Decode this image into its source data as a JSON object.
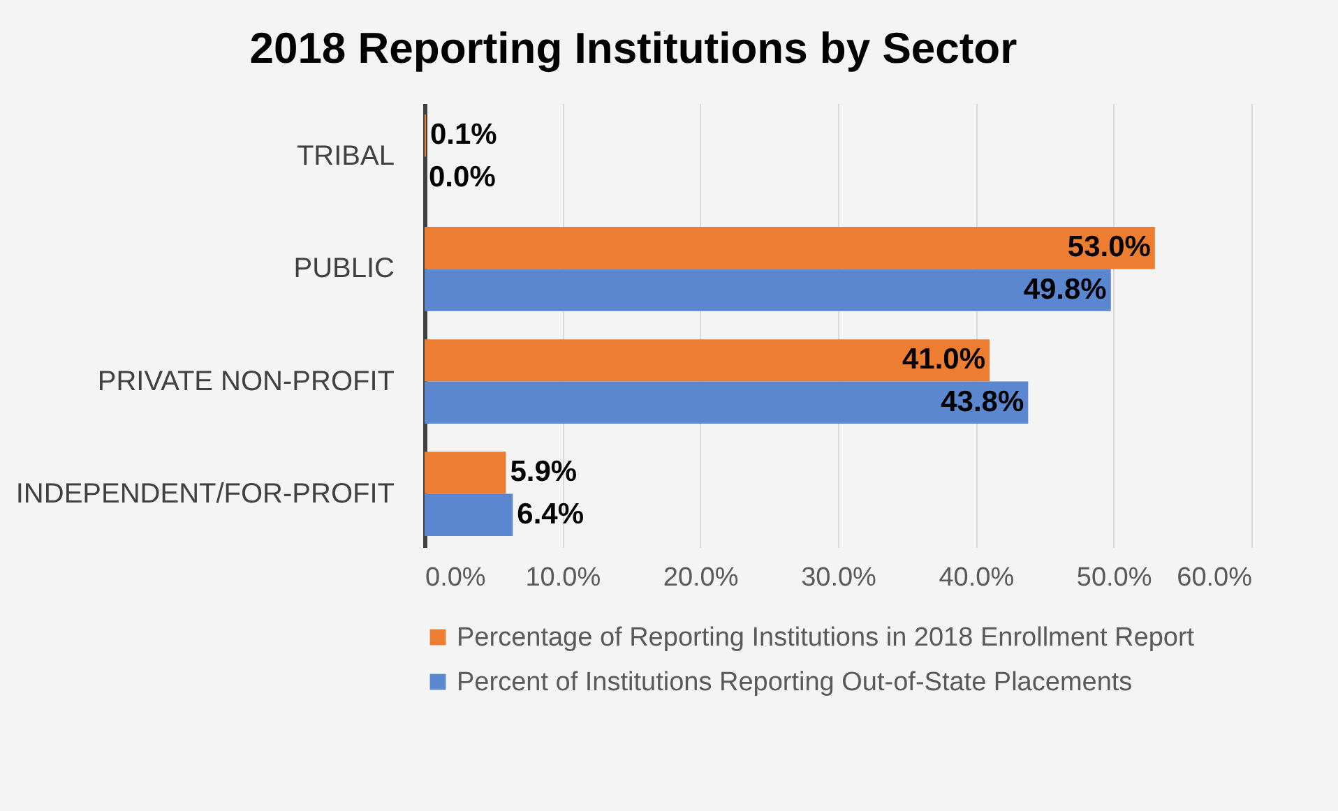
{
  "chart_data": {
    "type": "bar",
    "orientation": "horizontal",
    "title": "2018 Reporting Institutions by Sector",
    "categories": [
      "TRIBAL",
      "PUBLIC",
      "PRIVATE NON-PROFIT",
      "INDEPENDENT/FOR-PROFIT"
    ],
    "series": [
      {
        "name": "Percentage of Reporting Institutions in 2018 Enrollment Report",
        "color": "#ed7d31",
        "values": [
          0.1,
          53.0,
          41.0,
          5.9
        ],
        "value_labels": [
          "0.1%",
          "53.0%",
          "41.0%",
          "5.9%"
        ]
      },
      {
        "name": "Percent of Institutions Reporting Out-of-State Placements",
        "color": "#5b86d0",
        "values": [
          0.0,
          49.8,
          43.8,
          6.4
        ],
        "value_labels": [
          "0.0%",
          "49.8%",
          "43.8%",
          "6.4%"
        ]
      }
    ],
    "xlim": [
      0,
      60
    ],
    "xticks": [
      {
        "value": 0,
        "label": "0.0%"
      },
      {
        "value": 10,
        "label": "10.0%"
      },
      {
        "value": 20,
        "label": "20.0%"
      },
      {
        "value": 30,
        "label": "30.0%"
      },
      {
        "value": 40,
        "label": "40.0%"
      },
      {
        "value": 50,
        "label": "50.0%"
      },
      {
        "value": 60,
        "label": "60.0%"
      }
    ],
    "grid": "x",
    "legend": "bottom"
  }
}
